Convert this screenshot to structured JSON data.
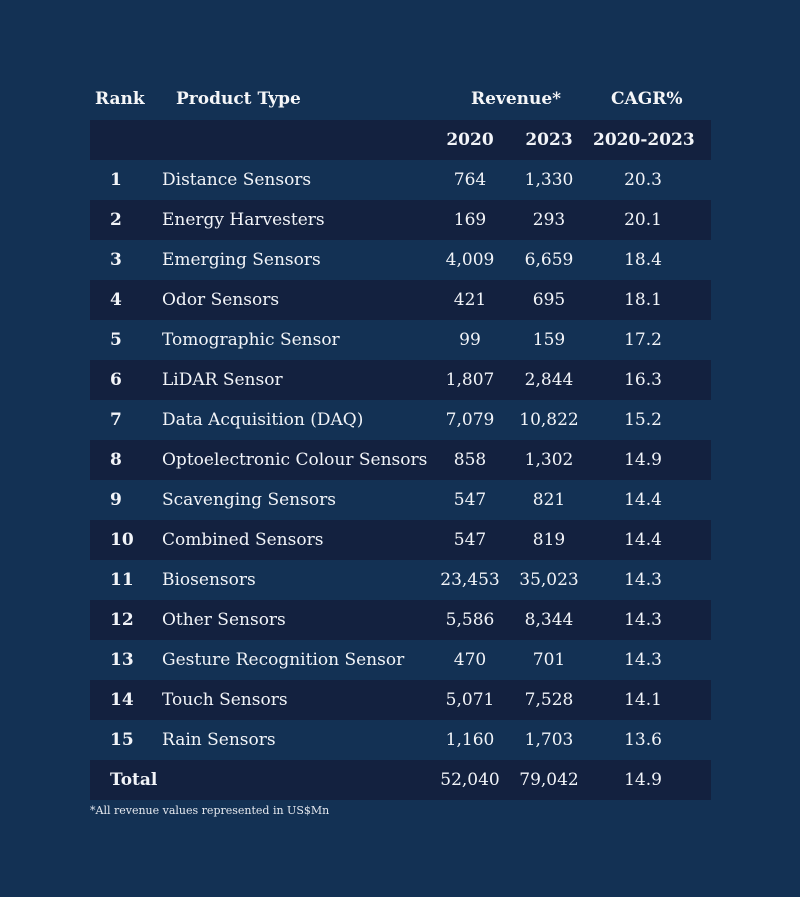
{
  "header": {
    "rank": "Rank",
    "product_type": "Product Type",
    "revenue": "Revenue*",
    "cagr": "CAGR%"
  },
  "subheader": {
    "y2020": "2020",
    "y2023": "2023",
    "period": "2020-2023"
  },
  "rows": [
    {
      "rank": "1",
      "product": "Distance Sensors",
      "rev2020": "764",
      "rev2023": "1,330",
      "cagr": "20.3"
    },
    {
      "rank": "2",
      "product": "Energy Harvesters",
      "rev2020": "169",
      "rev2023": "293",
      "cagr": "20.1"
    },
    {
      "rank": "3",
      "product": "Emerging Sensors",
      "rev2020": "4,009",
      "rev2023": "6,659",
      "cagr": "18.4"
    },
    {
      "rank": "4",
      "product": "Odor Sensors",
      "rev2020": "421",
      "rev2023": "695",
      "cagr": "18.1"
    },
    {
      "rank": "5",
      "product": "Tomographic Sensor",
      "rev2020": "99",
      "rev2023": "159",
      "cagr": "17.2"
    },
    {
      "rank": "6",
      "product": "LiDAR Sensor",
      "rev2020": "1,807",
      "rev2023": "2,844",
      "cagr": "16.3"
    },
    {
      "rank": "7",
      "product": "Data Acquisition (DAQ)",
      "rev2020": "7,079",
      "rev2023": "10,822",
      "cagr": "15.2"
    },
    {
      "rank": "8",
      "product": "Optoelectronic Colour Sensors",
      "rev2020": "858",
      "rev2023": "1,302",
      "cagr": "14.9"
    },
    {
      "rank": "9",
      "product": "Scavenging Sensors",
      "rev2020": "547",
      "rev2023": "821",
      "cagr": "14.4"
    },
    {
      "rank": "10",
      "product": "Combined Sensors",
      "rev2020": "547",
      "rev2023": "819",
      "cagr": "14.4"
    },
    {
      "rank": "11",
      "product": "Biosensors",
      "rev2020": "23,453",
      "rev2023": "35,023",
      "cagr": "14.3"
    },
    {
      "rank": "12",
      "product": "Other Sensors",
      "rev2020": "5,586",
      "rev2023": "8,344",
      "cagr": "14.3"
    },
    {
      "rank": "13",
      "product": "Gesture Recognition Sensor",
      "rev2020": "470",
      "rev2023": "701",
      "cagr": "14.3"
    },
    {
      "rank": "14",
      "product": "Touch Sensors",
      "rev2020": "5,071",
      "rev2023": "7,528",
      "cagr": "14.1"
    },
    {
      "rank": "15",
      "product": "Rain Sensors",
      "rev2020": "1,160",
      "rev2023": "1,703",
      "cagr": "13.6"
    }
  ],
  "total": {
    "label": "Total",
    "rev2020": "52,040",
    "rev2023": "79,042",
    "cagr": "14.9"
  },
  "footnote": "*All revenue values represented in US$Mn",
  "colors": {
    "background": "#133154",
    "band_dark": "#13213f",
    "text": "#f2f4f8"
  }
}
